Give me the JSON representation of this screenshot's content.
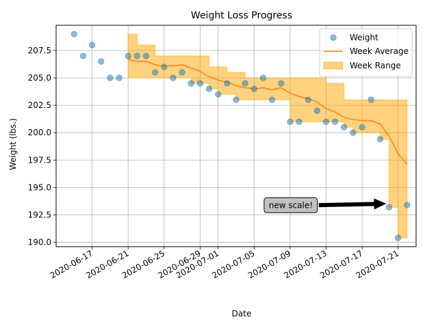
{
  "chart_data": {
    "type": "line",
    "title": "Weight Loss Progress",
    "xlabel": "Date",
    "ylabel": "Weight (lbs.)",
    "xlim": [
      "2020-06-13",
      "2020-07-23"
    ],
    "ylim": [
      189.6,
      209.8
    ],
    "grid": true,
    "legend_position": "upper right",
    "x_tick_labels": [
      "2020-06-17",
      "2020-06-21",
      "2020-06-25",
      "2020-06-29",
      "2020-07-01",
      "2020-07-05",
      "2020-07-09",
      "2020-07-13",
      "2020-07-17",
      "2020-07-21"
    ],
    "y_tick_labels": [
      "190.0",
      "192.5",
      "195.0",
      "197.5",
      "200.0",
      "202.5",
      "205.0",
      "207.5"
    ],
    "series": [
      {
        "name": "Weight",
        "kind": "scatter",
        "color": "#1f77b4",
        "x": [
          "2020-06-15",
          "2020-06-16",
          "2020-06-17",
          "2020-06-18",
          "2020-06-19",
          "2020-06-20",
          "2020-06-21",
          "2020-06-22",
          "2020-06-23",
          "2020-06-24",
          "2020-06-25",
          "2020-06-26",
          "2020-06-27",
          "2020-06-28",
          "2020-06-29",
          "2020-06-30",
          "2020-07-01",
          "2020-07-02",
          "2020-07-03",
          "2020-07-04",
          "2020-07-05",
          "2020-07-06",
          "2020-07-07",
          "2020-07-08",
          "2020-07-09",
          "2020-07-10",
          "2020-07-11",
          "2020-07-12",
          "2020-07-13",
          "2020-07-14",
          "2020-07-15",
          "2020-07-16",
          "2020-07-17",
          "2020-07-18",
          "2020-07-19",
          "2020-07-20",
          "2020-07-21",
          "2020-07-22"
        ],
        "values": [
          209.0,
          207.0,
          208.0,
          206.5,
          205.0,
          205.0,
          207.0,
          207.0,
          207.0,
          205.5,
          206.0,
          205.0,
          205.5,
          204.5,
          204.5,
          204.0,
          203.5,
          204.5,
          203.0,
          204.5,
          204.0,
          205.0,
          203.0,
          204.5,
          201.0,
          201.0,
          203.0,
          202.0,
          201.0,
          201.0,
          200.5,
          200.0,
          200.5,
          203.0,
          199.4,
          193.2,
          190.4,
          193.4
        ]
      },
      {
        "name": "Week Average",
        "kind": "line",
        "color": "#ff7f0e",
        "x": [
          "2020-06-21",
          "2020-06-22",
          "2020-06-23",
          "2020-06-24",
          "2020-06-25",
          "2020-06-26",
          "2020-06-27",
          "2020-06-28",
          "2020-06-29",
          "2020-06-30",
          "2020-07-01",
          "2020-07-02",
          "2020-07-03",
          "2020-07-04",
          "2020-07-05",
          "2020-07-06",
          "2020-07-07",
          "2020-07-08",
          "2020-07-09",
          "2020-07-10",
          "2020-07-11",
          "2020-07-12",
          "2020-07-13",
          "2020-07-14",
          "2020-07-15",
          "2020-07-16",
          "2020-07-17",
          "2020-07-18",
          "2020-07-19",
          "2020-07-20",
          "2020-07-21",
          "2020-07-22"
        ],
        "values": [
          206.7,
          206.5,
          206.5,
          206.2,
          206.1,
          206.1,
          206.2,
          205.9,
          205.6,
          205.1,
          204.8,
          204.6,
          204.3,
          204.1,
          204.0,
          204.1,
          203.9,
          204.1,
          203.6,
          203.3,
          203.1,
          202.8,
          202.2,
          201.9,
          201.4,
          201.2,
          201.1,
          201.1,
          200.8,
          199.7,
          198.1,
          197.1
        ]
      },
      {
        "name": "Week Range",
        "kind": "band",
        "color": "#ffa500",
        "x": [
          "2020-06-21",
          "2020-06-22",
          "2020-06-23",
          "2020-06-24",
          "2020-06-25",
          "2020-06-26",
          "2020-06-27",
          "2020-06-28",
          "2020-06-29",
          "2020-06-30",
          "2020-07-01",
          "2020-07-02",
          "2020-07-03",
          "2020-07-04",
          "2020-07-05",
          "2020-07-06",
          "2020-07-07",
          "2020-07-08",
          "2020-07-09",
          "2020-07-10",
          "2020-07-11",
          "2020-07-12",
          "2020-07-13",
          "2020-07-14",
          "2020-07-15",
          "2020-07-16",
          "2020-07-17",
          "2020-07-18",
          "2020-07-19",
          "2020-07-20",
          "2020-07-21",
          "2020-07-22"
        ],
        "upper": [
          209.0,
          208.0,
          208.0,
          207.0,
          207.0,
          207.0,
          207.0,
          207.0,
          207.0,
          206.0,
          206.0,
          205.5,
          205.5,
          205.0,
          205.0,
          205.0,
          205.0,
          205.0,
          205.0,
          205.0,
          205.0,
          205.0,
          204.5,
          204.5,
          203.0,
          203.0,
          203.0,
          203.0,
          203.0,
          203.0,
          203.0,
          203.0
        ],
        "lower": [
          205.0,
          205.0,
          205.0,
          205.0,
          205.0,
          205.0,
          205.0,
          204.5,
          204.5,
          204.0,
          203.5,
          203.5,
          203.0,
          203.0,
          203.0,
          203.0,
          203.0,
          203.0,
          201.0,
          201.0,
          201.0,
          201.0,
          201.0,
          201.0,
          200.5,
          200.0,
          200.0,
          200.0,
          199.4,
          193.2,
          190.4,
          190.4
        ]
      }
    ],
    "annotations": [
      {
        "text": "new scale!",
        "arrow_to": {
          "x": "2020-07-20",
          "y": 193.4
        },
        "text_at": {
          "x": "2020-07-09",
          "y": 193.2
        }
      }
    ]
  }
}
